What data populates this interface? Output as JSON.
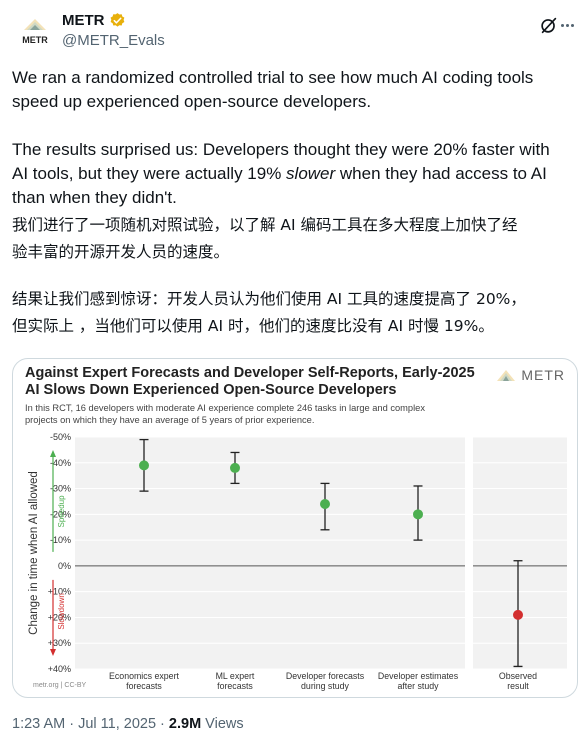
{
  "author": {
    "display_name": "METR",
    "handle": "@METR_Evals",
    "avatar_text": "METR",
    "verified_color": "#e8b00b"
  },
  "tweet": {
    "en_p1_line1": "We ran a randomized controlled trial to see how much AI coding tools",
    "en_p1_line2": "speed up experienced open-source developers.",
    "en_p2_line1": "The results surprised us: Developers thought they were 20% faster with",
    "en_p2_line2": "AI tools, but they were actually 19% ",
    "en_p2_slower": "slower",
    "en_p2_line2_end": " when they had access to AI",
    "en_p2_line3": "than when they didn't.",
    "cn_p1_line1": "我们进行了一项随机对照试验，以了解 AI 编码工具在多大程度上加快了经",
    "cn_p1_line2": "验丰富的开源开发人员的速度。",
    "cn_p2_line1": "结果让我们感到惊讶：开发人员认为他们使用 AI 工具的速度提高了 20%，",
    "cn_p2_line2": "但实际上 ，当他们可以使用 AI 时，他们的速度比没有 AI 时慢 19%。"
  },
  "chart_data": {
    "type": "scatter",
    "title_line1": "Against Expert Forecasts and Developer Self-Reports, Early-2025",
    "title_line2": "AI Slows Down Experienced Open-Source Developers",
    "subtitle_line1": "In this RCT, 16 developers with moderate AI experience complete 246 tasks in large and complex",
    "subtitle_line2": "projects on which they have an average of 5 years of prior experience.",
    "logo_text": "METR",
    "ylabel": "Change in time when AI allowed",
    "speedup_label": "Speedup",
    "slowdown_label": "Slowdown",
    "source": "metr.org | CC-BY",
    "ylim": [
      -50,
      40
    ],
    "y_ticks": [
      -50,
      -40,
      -30,
      -20,
      -10,
      0,
      10,
      20,
      30,
      40
    ],
    "y_tick_labels": [
      "-50%",
      "-40%",
      "-30%",
      "-20%",
      "-10%",
      "0%",
      "+10%",
      "+20%",
      "+30%",
      "+40%"
    ],
    "grid": true,
    "categories": [
      [
        "Economics expert",
        "forecasts"
      ],
      [
        "ML expert",
        "forecasts"
      ],
      [
        "Developer forecasts",
        "during study"
      ],
      [
        "Developer estimates",
        "after study"
      ],
      [
        "Observed",
        "result"
      ]
    ],
    "points": [
      {
        "value": -39,
        "low": -49,
        "high": -29,
        "color": "#4caf50"
      },
      {
        "value": -38,
        "low": -44,
        "high": -32,
        "color": "#4caf50"
      },
      {
        "value": -24,
        "low": -32,
        "high": -14,
        "color": "#4caf50"
      },
      {
        "value": -20,
        "low": -31,
        "high": -10,
        "color": "#4caf50"
      },
      {
        "value": 19,
        "low": -2,
        "high": 39,
        "color": "#d32f2f"
      }
    ],
    "speedup_color": "#4caf50",
    "slowdown_color": "#d32f2f"
  },
  "footer": {
    "time": "1:23 AM · Jul 11, 2025 · ",
    "views_count": "2.9M",
    "views_label": " Views"
  }
}
